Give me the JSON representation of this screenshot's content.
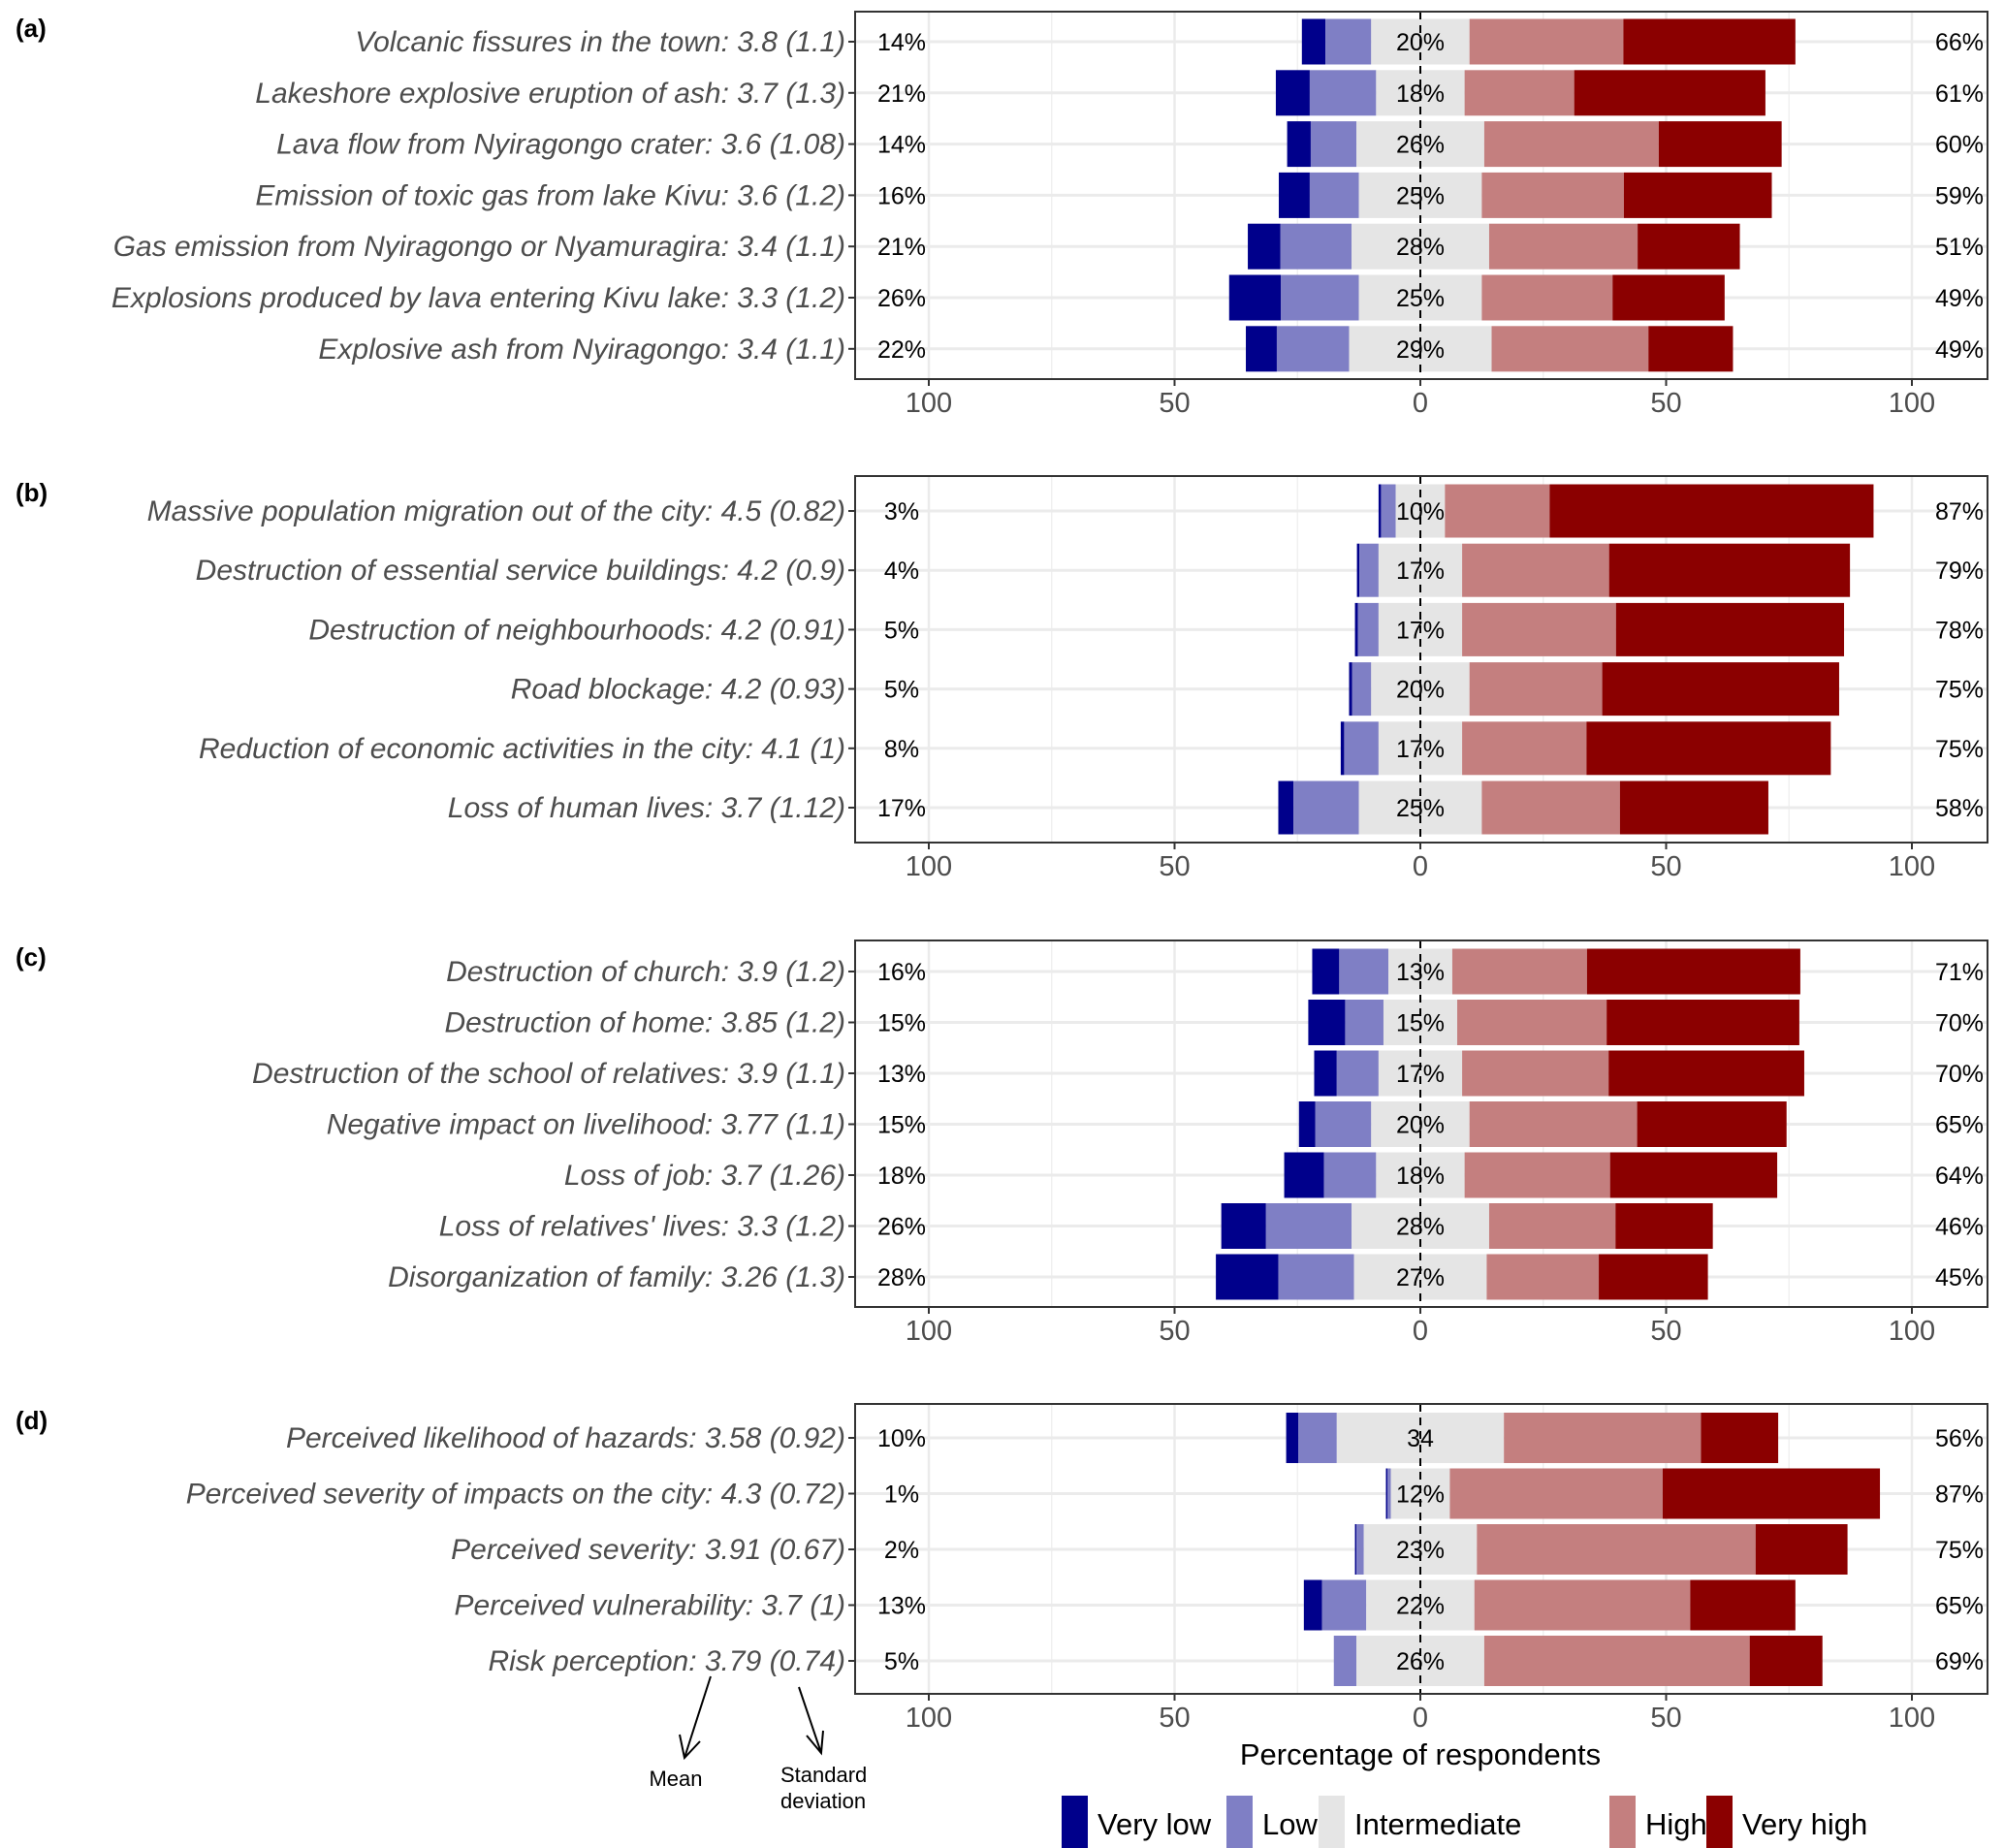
{
  "chart_data": {
    "type": "bar",
    "subtype": "diverging-stacked-horizontal-bar",
    "xlabel": "Percentage of respondents",
    "xlim": [
      -110,
      110
    ],
    "xticks": [
      -100,
      -50,
      0,
      50,
      100
    ],
    "xtick_labels": [
      "100",
      "50",
      "0",
      "50",
      "100"
    ],
    "grid": true,
    "legend": {
      "position": "bottom-right",
      "entries": [
        {
          "key": "very_low",
          "label": "Very low",
          "color": "#00008B"
        },
        {
          "key": "low",
          "label": "Low",
          "color": "#7F7FC5"
        },
        {
          "key": "intermediate",
          "label": "Intermediate",
          "color": "#E5E5E5"
        },
        {
          "key": "high",
          "label": "High",
          "color": "#C47F7F"
        },
        {
          "key": "very_high",
          "label": "Very high",
          "color": "#8B0000"
        }
      ]
    },
    "annotations": {
      "mean": "Mean",
      "sd": "Standard deviation"
    },
    "panels": [
      {
        "tag": "(a)",
        "rows": [
          {
            "label": "Volcanic fissures in the town: 3.8 (1.1)",
            "very_low": 4.8,
            "low": 9.3,
            "intermediate": 20,
            "high": 31.3,
            "very_high": 35,
            "left_label": "14%",
            "mid_label": "20%",
            "right_label": "66%"
          },
          {
            "label": "Lakeshore explosive eruption of ash: 3.7 (1.3)",
            "very_low": 6.9,
            "low": 13.5,
            "intermediate": 18,
            "high": 22.3,
            "very_high": 38.9,
            "left_label": "21%",
            "mid_label": "18%",
            "right_label": "61%"
          },
          {
            "label": "Lava flow from Nyiragongo crater: 3.6 (1.08)",
            "very_low": 4.8,
            "low": 9.3,
            "intermediate": 26,
            "high": 35.5,
            "very_high": 25,
            "left_label": "14%",
            "mid_label": "26%",
            "right_label": "60%"
          },
          {
            "label": "Emission of toxic gas from lake Kivu: 3.6 (1.2)",
            "very_low": 6.3,
            "low": 10,
            "intermediate": 25,
            "high": 28.9,
            "very_high": 30.1,
            "left_label": "16%",
            "mid_label": "25%",
            "right_label": "59%"
          },
          {
            "label": "Gas emission from Nyiragongo or Nyamuragira: 3.4 (1.1)",
            "very_low": 6.6,
            "low": 14.5,
            "intermediate": 28,
            "high": 30.2,
            "very_high": 20.8,
            "left_label": "21%",
            "mid_label": "28%",
            "right_label": "51%"
          },
          {
            "label": "Explosions produced by lava entering Kivu lake: 3.3 (1.2)",
            "very_low": 10.5,
            "low": 15.9,
            "intermediate": 25,
            "high": 26.6,
            "very_high": 22.8,
            "left_label": "26%",
            "mid_label": "25%",
            "right_label": "49%"
          },
          {
            "label": "Explosive ash from Nyiragongo: 3.4 (1.1)",
            "very_low": 6.3,
            "low": 14.7,
            "intermediate": 29,
            "high": 31.9,
            "very_high": 17.2,
            "left_label": "22%",
            "mid_label": "29%",
            "right_label": "49%"
          }
        ]
      },
      {
        "tag": "(b)",
        "rows": [
          {
            "label": "Massive population migration out of the city: 4.5 (0.82)",
            "very_low": 0.5,
            "low": 3,
            "intermediate": 10,
            "high": 21.3,
            "very_high": 65.9,
            "left_label": "3%",
            "mid_label": "10%",
            "right_label": "87%"
          },
          {
            "label": "Destruction of essential service buildings: 4.2 (0.9)",
            "very_low": 0.5,
            "low": 3.9,
            "intermediate": 17,
            "high": 29.9,
            "very_high": 49,
            "left_label": "4%",
            "mid_label": "17%",
            "right_label": "79%"
          },
          {
            "label": "Destruction of neighbourhoods: 4.2 (0.91)",
            "very_low": 0.6,
            "low": 4.2,
            "intermediate": 17,
            "high": 31.3,
            "very_high": 46.4,
            "left_label": "5%",
            "mid_label": "17%",
            "right_label": "78%"
          },
          {
            "label": "Road blockage: 4.2 (0.93)",
            "very_low": 0.6,
            "low": 3.9,
            "intermediate": 20,
            "high": 27,
            "very_high": 48.2,
            "left_label": "5%",
            "mid_label": "20%",
            "right_label": "75%"
          },
          {
            "label": "Reduction of economic activities in the city: 4.1 (1)",
            "very_low": 0.7,
            "low": 7,
            "intermediate": 17,
            "high": 25.3,
            "very_high": 49.7,
            "left_label": "8%",
            "mid_label": "17%",
            "right_label": "75%"
          },
          {
            "label": "Loss of human lives: 3.7 (1.12)",
            "very_low": 3.1,
            "low": 13.3,
            "intermediate": 25,
            "high": 28.1,
            "very_high": 30.2,
            "left_label": "17%",
            "mid_label": "25%",
            "right_label": "58%"
          }
        ]
      },
      {
        "tag": "(c)",
        "rows": [
          {
            "label": "Destruction of church: 3.9 (1.2)",
            "very_low": 5.5,
            "low": 10,
            "intermediate": 13,
            "high": 27.4,
            "very_high": 43.4,
            "left_label": "16%",
            "mid_label": "13%",
            "right_label": "71%"
          },
          {
            "label": "Destruction of home: 3.85 (1.2)",
            "very_low": 7.5,
            "low": 7.8,
            "intermediate": 15,
            "high": 30.4,
            "very_high": 39.2,
            "left_label": "15%",
            "mid_label": "15%",
            "right_label": "70%"
          },
          {
            "label": "Destruction of the school of relatives: 3.9 (1.1)",
            "very_low": 4.6,
            "low": 8.5,
            "intermediate": 17,
            "high": 29.8,
            "very_high": 39.8,
            "left_label": "13%",
            "mid_label": "17%",
            "right_label": "70%"
          },
          {
            "label": "Negative impact on livelihood: 3.77 (1.1)",
            "very_low": 3.3,
            "low": 11.4,
            "intermediate": 20,
            "high": 34.1,
            "very_high": 30.4,
            "left_label": "15%",
            "mid_label": "20%",
            "right_label": "65%"
          },
          {
            "label": "Loss of job: 3.7 (1.26)",
            "very_low": 8.1,
            "low": 10.6,
            "intermediate": 18,
            "high": 29.6,
            "very_high": 34,
            "left_label": "18%",
            "mid_label": "18%",
            "right_label": "64%"
          },
          {
            "label": "Loss of relatives' lives: 3.3 (1.2)",
            "very_low": 9.1,
            "low": 17.4,
            "intermediate": 28,
            "high": 25.7,
            "very_high": 19.8,
            "left_label": "26%",
            "mid_label": "28%",
            "right_label": "46%"
          },
          {
            "label": "Disorganization of family: 3.26 (1.3)",
            "very_low": 12.7,
            "low": 15.4,
            "intermediate": 27,
            "high": 22.8,
            "very_high": 22.2,
            "left_label": "28%",
            "mid_label": "27%",
            "right_label": "45%"
          }
        ]
      },
      {
        "tag": "(d)",
        "rows": [
          {
            "label": "Perceived likelihood of hazards: 3.58  (0.92)",
            "very_low": 2.5,
            "low": 7.8,
            "intermediate": 34,
            "high": 40.1,
            "very_high": 15.7,
            "left_label": "10%",
            "mid_label": "34",
            "right_label": "56%"
          },
          {
            "label": "Perceived severity of impacts on the city: 4.3 (0.72)",
            "very_low": 0.3,
            "low": 0.7,
            "intermediate": 12,
            "high": 43.3,
            "very_high": 44.2,
            "left_label": "1%",
            "mid_label": "12%",
            "right_label": "87%"
          },
          {
            "label": "Perceived severity: 3.91 (0.67)",
            "very_low": 0.3,
            "low": 1.5,
            "intermediate": 23,
            "high": 56.7,
            "very_high": 18.7,
            "left_label": "2%",
            "mid_label": "23%",
            "right_label": "75%"
          },
          {
            "label": "Perceived vulnerability: 3.7 (1)",
            "very_low": 3.7,
            "low": 9,
            "intermediate": 22,
            "high": 43.9,
            "very_high": 21.4,
            "left_label": "13%",
            "mid_label": "22%",
            "right_label": "65%"
          },
          {
            "label": "Risk perception: 3.79 (0.74)",
            "very_low": 0,
            "low": 4.6,
            "intermediate": 26,
            "high": 54,
            "very_high": 14.8,
            "left_label": "5%",
            "mid_label": "26%",
            "right_label": "69%"
          }
        ]
      }
    ]
  }
}
